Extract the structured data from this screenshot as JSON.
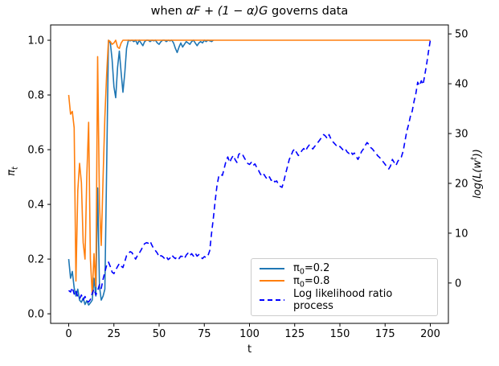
{
  "chart_data": {
    "type": "line",
    "title_parts": {
      "pre": "when ",
      "math": "αF + (1 − α)G",
      "post": " governs data"
    },
    "xlabel": "t",
    "axes": {
      "x": {
        "ticks": [
          0,
          25,
          50,
          75,
          100,
          125,
          150,
          175,
          200
        ],
        "lim": [
          -10,
          210
        ]
      },
      "y_left": {
        "label_main": "π",
        "label_sub": "t",
        "tick_labels": [
          "0.0",
          "0.2",
          "0.4",
          "0.6",
          "0.8",
          "1.0"
        ],
        "ticks": [
          0.0,
          0.2,
          0.4,
          0.6,
          0.8,
          1.0
        ],
        "lim": [
          -0.035,
          1.056
        ]
      },
      "y_right": {
        "label_pre": "log(L(w",
        "label_sup": "t",
        "label_post": "))",
        "ticks": [
          0,
          10,
          20,
          30,
          40,
          50
        ],
        "lim": [
          -8.1,
          51.8
        ]
      }
    },
    "grid": false,
    "legend_position": "lower right inside plot",
    "series": [
      {
        "name": "pi0-0.2",
        "label": "π0=0.2",
        "color": "#1f77b4",
        "style": "solid",
        "axis": "left",
        "x_start": 0,
        "values": [
          0.2,
          0.13,
          0.155,
          0.095,
          0.065,
          0.09,
          0.05,
          0.042,
          0.058,
          0.034,
          0.048,
          0.032,
          0.04,
          0.05,
          0.13,
          0.065,
          0.46,
          0.1,
          0.05,
          0.065,
          0.09,
          0.55,
          1.0,
          0.99,
          0.93,
          0.83,
          0.79,
          0.9,
          0.96,
          0.88,
          0.81,
          0.88,
          0.97,
          1.0,
          0.998,
          1.0,
          0.995,
          1.0,
          0.985,
          1.0,
          0.99,
          0.98,
          0.995,
          1.0,
          1.0,
          0.995,
          1.0,
          0.998,
          1.0,
          0.99,
          0.985,
          0.995,
          1.0,
          1.0,
          0.995,
          1.0,
          0.998,
          1.0,
          0.99,
          0.97,
          0.955,
          0.975,
          0.99,
          0.975,
          0.985,
          0.995,
          0.99,
          0.985,
          0.995,
          1.0,
          0.99,
          0.98,
          0.99,
          0.995,
          0.99,
          1.0,
          0.995,
          1.0,
          0.998,
          0.995,
          1.0
        ]
      },
      {
        "name": "pi0-0.8",
        "label": "π0=0.8",
        "color": "#ff7f0e",
        "style": "solid",
        "axis": "left",
        "x_start": 0,
        "pad_to": 201,
        "pad_value": 1.0,
        "values": [
          0.8,
          0.73,
          0.74,
          0.68,
          0.12,
          0.45,
          0.55,
          0.48,
          0.26,
          0.2,
          0.5,
          0.7,
          0.2,
          0.07,
          0.22,
          0.1,
          0.94,
          0.4,
          0.25,
          0.5,
          0.72,
          0.88,
          1.0,
          0.995,
          0.985,
          0.99,
          1.0,
          0.975,
          0.97,
          0.99,
          1.0
        ]
      },
      {
        "name": "log-likelihood-ratio",
        "label": "Log likelihood ratio process",
        "color": "#0000ff",
        "style": "dashed",
        "axis": "right",
        "x_start": 0,
        "values": [
          -1.5,
          -1.8,
          -0.9,
          -2.2,
          -1.5,
          -2.8,
          -3.2,
          -2.4,
          -3.4,
          -2.7,
          -3.6,
          -3.8,
          -3.3,
          -2.1,
          -1.2,
          -2.4,
          -1.6,
          -0.3,
          -1.1,
          0.8,
          2.2,
          3.6,
          4.2,
          3.3,
          2.2,
          1.9,
          2.6,
          3.3,
          3.9,
          3.4,
          3.1,
          4.3,
          5.5,
          5.9,
          6.3,
          6.1,
          5.4,
          4.8,
          5.5,
          6.0,
          6.6,
          7.3,
          7.9,
          8.1,
          8.0,
          8.4,
          7.6,
          6.9,
          6.5,
          6.0,
          5.2,
          5.5,
          5.3,
          4.9,
          5.3,
          4.7,
          5.0,
          5.6,
          5.2,
          4.9,
          5.3,
          4.9,
          5.4,
          5.3,
          4.9,
          5.6,
          6.0,
          5.5,
          5.9,
          5.4,
          6.0,
          5.4,
          5.7,
          5.2,
          4.9,
          5.3,
          5.1,
          5.5,
          6.5,
          10.0,
          13.0,
          16.5,
          19.5,
          21.5,
          21.8,
          21.6,
          23.0,
          24.5,
          25.3,
          24.2,
          25.0,
          25.6,
          24.8,
          24.2,
          25.8,
          26.1,
          25.9,
          25.2,
          24.6,
          24.0,
          23.8,
          24.2,
          23.6,
          23.9,
          23.2,
          22.6,
          21.9,
          21.4,
          21.8,
          21.2,
          20.8,
          21.3,
          20.6,
          20.9,
          20.3,
          20.5,
          19.8,
          19.4,
          19.2,
          20.5,
          22.0,
          23.4,
          24.8,
          25.6,
          26.5,
          26.9,
          26.2,
          25.6,
          26.0,
          26.6,
          27.0,
          26.5,
          27.2,
          27.7,
          27.3,
          26.9,
          27.4,
          27.8,
          28.3,
          28.8,
          29.3,
          29.8,
          29.5,
          29.0,
          29.8,
          28.9,
          28.4,
          28.0,
          27.6,
          27.2,
          27.4,
          27.0,
          26.6,
          26.9,
          26.3,
          26.0,
          26.4,
          25.8,
          26.1,
          25.4,
          24.8,
          25.6,
          26.4,
          26.9,
          27.6,
          28.2,
          27.8,
          27.2,
          26.9,
          26.4,
          26.0,
          25.5,
          25.2,
          24.7,
          24.3,
          23.8,
          23.3,
          22.9,
          23.5,
          24.8,
          24.2,
          23.6,
          24.4,
          25.0,
          25.3,
          26.5,
          28.5,
          30.5,
          31.8,
          33.5,
          34.5,
          36.5,
          38.0,
          40.3,
          39.6,
          40.6,
          39.8,
          41.9,
          44.0,
          46.5,
          48.7
        ]
      }
    ]
  },
  "legend": {
    "items": [
      {
        "pre": "π",
        "sub": "0",
        "post": "=0.2",
        "color": "#1f77b4",
        "style": "solid"
      },
      {
        "pre": "π",
        "sub": "0",
        "post": "=0.8",
        "color": "#ff7f0e",
        "style": "solid"
      },
      {
        "pre": "",
        "sub": "",
        "post": "Log likelihood ratio process",
        "color": "#0000ff",
        "style": "dashed"
      }
    ]
  }
}
